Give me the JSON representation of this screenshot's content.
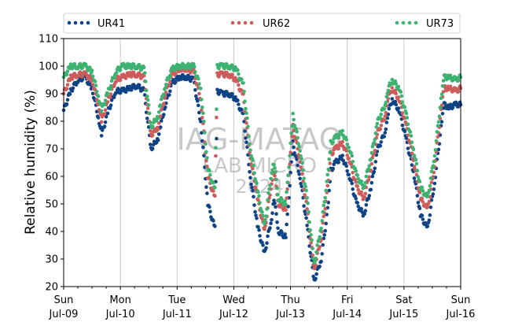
{
  "chart_data": {
    "type": "scatter",
    "title": "",
    "xlabel": "",
    "ylabel": "Relative humidity (%)",
    "ylim": [
      20,
      110
    ],
    "yticks": [
      20,
      30,
      40,
      50,
      60,
      70,
      80,
      90,
      100,
      110
    ],
    "x_range_hours": [
      0,
      168
    ],
    "xticks": [
      {
        "day": "Sun",
        "date": "Jul-09",
        "hour": 0
      },
      {
        "day": "Mon",
        "date": "Jul-10",
        "hour": 24
      },
      {
        "day": "Tue",
        "date": "Jul-11",
        "hour": 48
      },
      {
        "day": "Wed",
        "date": "Jul-12",
        "hour": 72
      },
      {
        "day": "Thu",
        "date": "Jul-13",
        "hour": 96
      },
      {
        "day": "Fri",
        "date": "Jul-14",
        "hour": 120
      },
      {
        "day": "Sat",
        "date": "Jul-15",
        "hour": 144
      },
      {
        "day": "Sun",
        "date": "Jul-16",
        "hour": 168
      }
    ],
    "grid": "vertical",
    "legend_position": "top",
    "series": [
      {
        "name": "UR41",
        "color": "#0e4486",
        "x": [
          0,
          3,
          6,
          9,
          12,
          15,
          16,
          19,
          22,
          25,
          28,
          31,
          34,
          37,
          40,
          41,
          43,
          46,
          49,
          52,
          55,
          58,
          61,
          64,
          65,
          67,
          70,
          73,
          76,
          79,
          82,
          85,
          88,
          89,
          91,
          94,
          97,
          100,
          103,
          106,
          109,
          112,
          113,
          115,
          118,
          121,
          124,
          127,
          130,
          133,
          136,
          137,
          139,
          142,
          145,
          148,
          151,
          154,
          157,
          160,
          161,
          163,
          166,
          168
        ],
        "y": [
          84,
          91,
          95,
          96,
          92,
          80,
          75,
          84,
          91,
          91,
          92,
          93,
          91,
          70,
          74,
          78,
          86,
          94,
          96,
          96,
          95,
          80,
          50,
          41,
          91,
          90,
          90,
          88,
          82,
          60,
          42,
          32,
          45,
          52,
          40,
          38,
          72,
          60,
          42,
          22,
          30,
          50,
          62,
          65,
          67,
          60,
          50,
          46,
          56,
          70,
          76,
          82,
          88,
          84,
          73,
          62,
          46,
          41,
          58,
          80,
          86,
          85,
          86,
          86
        ]
      },
      {
        "name": "UR62",
        "color": "#cd5c5c",
        "x": [
          0,
          3,
          6,
          9,
          12,
          15,
          16,
          19,
          22,
          25,
          28,
          31,
          34,
          37,
          40,
          41,
          43,
          46,
          49,
          52,
          55,
          58,
          61,
          64,
          65,
          67,
          70,
          73,
          76,
          79,
          82,
          85,
          88,
          89,
          91,
          94,
          97,
          100,
          103,
          106,
          109,
          112,
          113,
          115,
          118,
          121,
          124,
          127,
          130,
          133,
          136,
          137,
          139,
          142,
          145,
          148,
          151,
          154,
          157,
          160,
          161,
          163,
          166,
          168
        ],
        "y": [
          90,
          96,
          97,
          97,
          95,
          85,
          80,
          88,
          95,
          96,
          97,
          97,
          96,
          75,
          78,
          82,
          90,
          97,
          99,
          99,
          98,
          88,
          60,
          52,
          97,
          97,
          97,
          95,
          89,
          67,
          52,
          40,
          58,
          62,
          50,
          48,
          78,
          66,
          48,
          26,
          38,
          58,
          68,
          70,
          72,
          66,
          56,
          52,
          63,
          76,
          82,
          88,
          92,
          88,
          78,
          66,
          52,
          48,
          64,
          86,
          92,
          92,
          91,
          92
        ]
      },
      {
        "name": "UR73",
        "color": "#3cb371",
        "x": [
          0,
          3,
          6,
          9,
          12,
          15,
          16,
          19,
          22,
          25,
          28,
          31,
          34,
          37,
          40,
          41,
          43,
          46,
          49,
          52,
          55,
          58,
          61,
          64,
          65,
          67,
          70,
          73,
          76,
          79,
          82,
          85,
          88,
          89,
          91,
          94,
          97,
          100,
          103,
          106,
          109,
          112,
          113,
          115,
          118,
          121,
          124,
          127,
          130,
          133,
          136,
          137,
          139,
          142,
          145,
          148,
          151,
          154,
          157,
          160,
          161,
          163,
          166,
          168
        ],
        "y": [
          96,
          100,
          100,
          100,
          98,
          88,
          84,
          91,
          98,
          100,
          100,
          100,
          99,
          78,
          82,
          86,
          93,
          99,
          100,
          100,
          100,
          92,
          63,
          55,
          100,
          100,
          100,
          99,
          93,
          70,
          55,
          42,
          62,
          65,
          52,
          50,
          82,
          70,
          52,
          28,
          42,
          62,
          72,
          74,
          76,
          70,
          60,
          56,
          67,
          80,
          86,
          91,
          95,
          92,
          82,
          70,
          56,
          52,
          68,
          90,
          96,
          96,
          95,
          96
        ]
      }
    ]
  },
  "watermark": {
    "line1": "IAG-MATAO",
    "line2": "LAB MICRO",
    "line3": "2024"
  }
}
